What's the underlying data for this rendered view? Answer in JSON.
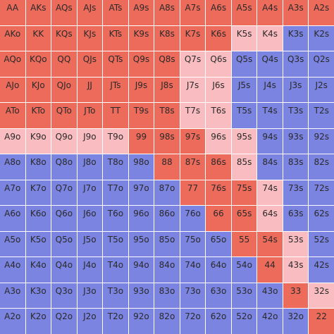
{
  "legend": {
    "r": {
      "color": "#ec6b5b"
    },
    "p": {
      "color": "#f9bcc0"
    },
    "b": {
      "color": "#7b84e0"
    }
  },
  "grid": {
    "rows": [
      {
        "cells": [
          {
            "hand": "AA",
            "action": "r"
          },
          {
            "hand": "AKs",
            "action": "r"
          },
          {
            "hand": "AQs",
            "action": "r"
          },
          {
            "hand": "AJs",
            "action": "r"
          },
          {
            "hand": "ATs",
            "action": "r"
          },
          {
            "hand": "A9s",
            "action": "r"
          },
          {
            "hand": "A8s",
            "action": "r"
          },
          {
            "hand": "A7s",
            "action": "r"
          },
          {
            "hand": "A6s",
            "action": "r"
          },
          {
            "hand": "A5s",
            "action": "r"
          },
          {
            "hand": "A4s",
            "action": "r"
          },
          {
            "hand": "A3s",
            "action": "r"
          },
          {
            "hand": "A2s",
            "action": "r"
          }
        ]
      },
      {
        "cells": [
          {
            "hand": "AKo",
            "action": "r"
          },
          {
            "hand": "KK",
            "action": "r"
          },
          {
            "hand": "KQs",
            "action": "r"
          },
          {
            "hand": "KJs",
            "action": "r"
          },
          {
            "hand": "KTs",
            "action": "r"
          },
          {
            "hand": "K9s",
            "action": "r"
          },
          {
            "hand": "K8s",
            "action": "r"
          },
          {
            "hand": "K7s",
            "action": "r"
          },
          {
            "hand": "K6s",
            "action": "r"
          },
          {
            "hand": "K5s",
            "action": "p"
          },
          {
            "hand": "K4s",
            "action": "p"
          },
          {
            "hand": "K3s",
            "action": "b"
          },
          {
            "hand": "K2s",
            "action": "b"
          }
        ]
      },
      {
        "cells": [
          {
            "hand": "AQo",
            "action": "r"
          },
          {
            "hand": "KQo",
            "action": "r"
          },
          {
            "hand": "QQ",
            "action": "r"
          },
          {
            "hand": "QJs",
            "action": "r"
          },
          {
            "hand": "QTs",
            "action": "r"
          },
          {
            "hand": "Q9s",
            "action": "r"
          },
          {
            "hand": "Q8s",
            "action": "r"
          },
          {
            "hand": "Q7s",
            "action": "p"
          },
          {
            "hand": "Q6s",
            "action": "p"
          },
          {
            "hand": "Q5s",
            "action": "b"
          },
          {
            "hand": "Q4s",
            "action": "b"
          },
          {
            "hand": "Q3s",
            "action": "b"
          },
          {
            "hand": "Q2s",
            "action": "b"
          }
        ]
      },
      {
        "cells": [
          {
            "hand": "AJo",
            "action": "r"
          },
          {
            "hand": "KJo",
            "action": "r"
          },
          {
            "hand": "QJo",
            "action": "r"
          },
          {
            "hand": "JJ",
            "action": "r"
          },
          {
            "hand": "JTs",
            "action": "r"
          },
          {
            "hand": "J9s",
            "action": "r"
          },
          {
            "hand": "J8s",
            "action": "r"
          },
          {
            "hand": "J7s",
            "action": "p"
          },
          {
            "hand": "J6s",
            "action": "p"
          },
          {
            "hand": "J5s",
            "action": "b"
          },
          {
            "hand": "J4s",
            "action": "b"
          },
          {
            "hand": "J3s",
            "action": "b"
          },
          {
            "hand": "J2s",
            "action": "b"
          }
        ]
      },
      {
        "cells": [
          {
            "hand": "ATo",
            "action": "r"
          },
          {
            "hand": "KTo",
            "action": "r"
          },
          {
            "hand": "QTo",
            "action": "r"
          },
          {
            "hand": "JTo",
            "action": "r"
          },
          {
            "hand": "TT",
            "action": "r"
          },
          {
            "hand": "T9s",
            "action": "r"
          },
          {
            "hand": "T8s",
            "action": "r"
          },
          {
            "hand": "T7s",
            "action": "p"
          },
          {
            "hand": "T6s",
            "action": "p"
          },
          {
            "hand": "T5s",
            "action": "b"
          },
          {
            "hand": "T4s",
            "action": "b"
          },
          {
            "hand": "T3s",
            "action": "b"
          },
          {
            "hand": "T2s",
            "action": "b"
          }
        ]
      },
      {
        "cells": [
          {
            "hand": "A9o",
            "action": "p"
          },
          {
            "hand": "K9o",
            "action": "p"
          },
          {
            "hand": "Q9o",
            "action": "p"
          },
          {
            "hand": "J9o",
            "action": "p"
          },
          {
            "hand": "T9o",
            "action": "p"
          },
          {
            "hand": "99",
            "action": "r"
          },
          {
            "hand": "98s",
            "action": "r"
          },
          {
            "hand": "97s",
            "action": "r"
          },
          {
            "hand": "96s",
            "action": "p"
          },
          {
            "hand": "95s",
            "action": "p"
          },
          {
            "hand": "94s",
            "action": "b"
          },
          {
            "hand": "93s",
            "action": "b"
          },
          {
            "hand": "92s",
            "action": "b"
          }
        ]
      },
      {
        "cells": [
          {
            "hand": "A8o",
            "action": "b"
          },
          {
            "hand": "K8o",
            "action": "b"
          },
          {
            "hand": "Q8o",
            "action": "b"
          },
          {
            "hand": "J8o",
            "action": "b"
          },
          {
            "hand": "T8o",
            "action": "b"
          },
          {
            "hand": "98o",
            "action": "b"
          },
          {
            "hand": "88",
            "action": "r"
          },
          {
            "hand": "87s",
            "action": "r"
          },
          {
            "hand": "86s",
            "action": "r"
          },
          {
            "hand": "85s",
            "action": "p"
          },
          {
            "hand": "84s",
            "action": "b"
          },
          {
            "hand": "83s",
            "action": "b"
          },
          {
            "hand": "82s",
            "action": "b"
          }
        ]
      },
      {
        "cells": [
          {
            "hand": "A7o",
            "action": "b"
          },
          {
            "hand": "K7o",
            "action": "b"
          },
          {
            "hand": "Q7o",
            "action": "b"
          },
          {
            "hand": "J7o",
            "action": "b"
          },
          {
            "hand": "T7o",
            "action": "b"
          },
          {
            "hand": "97o",
            "action": "b"
          },
          {
            "hand": "87o",
            "action": "b"
          },
          {
            "hand": "77",
            "action": "r"
          },
          {
            "hand": "76s",
            "action": "r"
          },
          {
            "hand": "75s",
            "action": "r"
          },
          {
            "hand": "74s",
            "action": "p"
          },
          {
            "hand": "73s",
            "action": "b"
          },
          {
            "hand": "72s",
            "action": "b"
          }
        ]
      },
      {
        "cells": [
          {
            "hand": "A6o",
            "action": "b"
          },
          {
            "hand": "K6o",
            "action": "b"
          },
          {
            "hand": "Q6o",
            "action": "b"
          },
          {
            "hand": "J6o",
            "action": "b"
          },
          {
            "hand": "T6o",
            "action": "b"
          },
          {
            "hand": "96o",
            "action": "b"
          },
          {
            "hand": "86o",
            "action": "b"
          },
          {
            "hand": "76o",
            "action": "b"
          },
          {
            "hand": "66",
            "action": "r"
          },
          {
            "hand": "65s",
            "action": "r"
          },
          {
            "hand": "64s",
            "action": "p"
          },
          {
            "hand": "63s",
            "action": "b"
          },
          {
            "hand": "62s",
            "action": "b"
          }
        ]
      },
      {
        "cells": [
          {
            "hand": "A5o",
            "action": "b"
          },
          {
            "hand": "K5o",
            "action": "b"
          },
          {
            "hand": "Q5o",
            "action": "b"
          },
          {
            "hand": "J5o",
            "action": "b"
          },
          {
            "hand": "T5o",
            "action": "b"
          },
          {
            "hand": "95o",
            "action": "b"
          },
          {
            "hand": "85o",
            "action": "b"
          },
          {
            "hand": "75o",
            "action": "b"
          },
          {
            "hand": "65o",
            "action": "b"
          },
          {
            "hand": "55",
            "action": "r"
          },
          {
            "hand": "54s",
            "action": "r"
          },
          {
            "hand": "53s",
            "action": "p"
          },
          {
            "hand": "52s",
            "action": "b"
          }
        ]
      },
      {
        "cells": [
          {
            "hand": "A4o",
            "action": "b"
          },
          {
            "hand": "K4o",
            "action": "b"
          },
          {
            "hand": "Q4o",
            "action": "b"
          },
          {
            "hand": "J4o",
            "action": "b"
          },
          {
            "hand": "T4o",
            "action": "b"
          },
          {
            "hand": "94o",
            "action": "b"
          },
          {
            "hand": "84o",
            "action": "b"
          },
          {
            "hand": "74o",
            "action": "b"
          },
          {
            "hand": "64o",
            "action": "b"
          },
          {
            "hand": "54o",
            "action": "b"
          },
          {
            "hand": "44",
            "action": "r"
          },
          {
            "hand": "43s",
            "action": "p"
          },
          {
            "hand": "42s",
            "action": "b"
          }
        ]
      },
      {
        "cells": [
          {
            "hand": "A3o",
            "action": "b"
          },
          {
            "hand": "K3o",
            "action": "b"
          },
          {
            "hand": "Q3o",
            "action": "b"
          },
          {
            "hand": "J3o",
            "action": "b"
          },
          {
            "hand": "T3o",
            "action": "b"
          },
          {
            "hand": "93o",
            "action": "b"
          },
          {
            "hand": "83o",
            "action": "b"
          },
          {
            "hand": "73o",
            "action": "b"
          },
          {
            "hand": "63o",
            "action": "b"
          },
          {
            "hand": "53o",
            "action": "b"
          },
          {
            "hand": "43o",
            "action": "b"
          },
          {
            "hand": "33",
            "action": "r"
          },
          {
            "hand": "32s",
            "action": "p"
          }
        ]
      },
      {
        "cells": [
          {
            "hand": "A2o",
            "action": "b"
          },
          {
            "hand": "K2o",
            "action": "b"
          },
          {
            "hand": "Q2o",
            "action": "b"
          },
          {
            "hand": "J2o",
            "action": "b"
          },
          {
            "hand": "T2o",
            "action": "b"
          },
          {
            "hand": "92o",
            "action": "b"
          },
          {
            "hand": "82o",
            "action": "b"
          },
          {
            "hand": "72o",
            "action": "b"
          },
          {
            "hand": "62o",
            "action": "b"
          },
          {
            "hand": "52o",
            "action": "b"
          },
          {
            "hand": "42o",
            "action": "b"
          },
          {
            "hand": "32o",
            "action": "b"
          },
          {
            "hand": "22",
            "action": "r"
          }
        ]
      }
    ]
  }
}
